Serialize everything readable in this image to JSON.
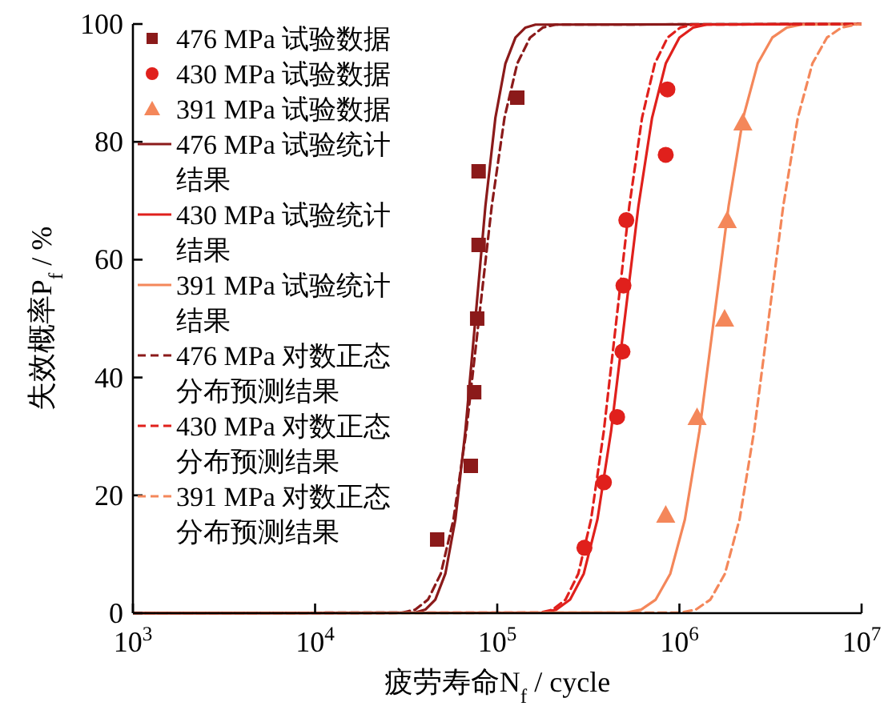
{
  "chart_data": {
    "type": "line",
    "xlabel": "疲劳寿命N$_{f}$ / cycle",
    "ylabel": "失效概率P$_{f}$ / %",
    "log": "x",
    "grid": false,
    "legend": "top left",
    "xlim": [
      1000,
      10000000
    ],
    "ylim": [
      0,
      100
    ],
    "xticks": [
      {
        "value": 1000,
        "label": "10$^{3}$"
      },
      {
        "value": 10000,
        "label": "10$^{4}$"
      },
      {
        "value": 100000,
        "label": "10$^{5}$"
      },
      {
        "value": 1000000,
        "label": "10$^{6}$"
      },
      {
        "value": 10000000,
        "label": "10$^{7}$"
      }
    ],
    "yticks": [
      0,
      20,
      40,
      60,
      80,
      100
    ],
    "series": [
      {
        "name": "476 MPa 试验数据",
        "type": "scatter",
        "marker": "square",
        "color": "#8b1a1a",
        "x": [
          46800,
          71600,
          74700,
          77600,
          79000,
          79000,
          128800
        ],
        "values": [
          12.5,
          25,
          37.5,
          50,
          62.5,
          75,
          87.5
        ]
      },
      {
        "name": "430 MPa 试验数据",
        "type": "scatter",
        "marker": "circle",
        "color": "#e0201c",
        "x": [
          301000,
          385000,
          455000,
          487000,
          493000,
          511000,
          841000,
          859000
        ],
        "values": [
          11.1,
          22.2,
          33.3,
          44.4,
          55.6,
          66.7,
          77.8,
          88.9
        ]
      },
      {
        "name": "391 MPa 试验数据",
        "type": "scatter",
        "marker": "triangle",
        "color": "#f4875a",
        "x": [
          841000,
          1250000,
          1770000,
          1830000,
          2230000
        ],
        "values": [
          16.7,
          33.3,
          50,
          66.7,
          83.3
        ]
      },
      {
        "name": "476 MPa 试验统计结果",
        "line_style": "solid",
        "color": "#8b1a1a",
        "x": [
          1000,
          35500,
          40300,
          45700,
          51900,
          58900,
          66800,
          75900,
          86100,
          97700,
          110900,
          125900,
          142900,
          162200,
          10000000
        ],
        "values": [
          0,
          0.1,
          0.6,
          2.3,
          6.7,
          15.9,
          30.9,
          50,
          69.1,
          84.1,
          93.3,
          97.7,
          99.4,
          99.9,
          100
        ]
      },
      {
        "name": "430 MPa 试验统计结果",
        "line_style": "solid",
        "color": "#e0201c",
        "x": [
          1000,
          177800,
          211300,
          251200,
          298500,
          354800,
          421700,
          501200,
          595700,
          707900,
          841400,
          1000000,
          1188500,
          1412500,
          10000000
        ],
        "values": [
          0,
          0.1,
          0.6,
          2.3,
          6.7,
          15.9,
          30.9,
          50,
          69.1,
          84.1,
          93.3,
          97.7,
          99.4,
          99.9,
          100
        ]
      },
      {
        "name": "391 MPa 试验统计结果",
        "line_style": "solid",
        "color": "#f4875a",
        "x": [
          1000,
          512900,
          616600,
          741300,
          891300,
          1071500,
          1288200,
          1548800,
          1862100,
          2238700,
          2691500,
          3235900,
          3890500,
          4677400,
          10000000
        ],
        "values": [
          0,
          0.1,
          0.6,
          2.3,
          6.7,
          15.9,
          30.9,
          50,
          69.1,
          84.1,
          93.3,
          97.7,
          99.4,
          99.9,
          100
        ]
      },
      {
        "name": "476 MPa 对数正态分布预测结果",
        "line_style": "dashed",
        "color": "#8b1a1a",
        "x": [
          1000,
          30200,
          35500,
          41700,
          49000,
          57500,
          67600,
          79400,
          93300,
          109600,
          128800,
          151400,
          177800,
          208900,
          10000000
        ],
        "values": [
          0,
          0.1,
          0.6,
          2.3,
          6.7,
          15.9,
          30.9,
          50,
          69.1,
          84.1,
          93.3,
          97.7,
          99.4,
          99.9,
          100
        ]
      },
      {
        "name": "430 MPa 对数正态分布预测结果",
        "line_style": "dashed",
        "color": "#e0201c",
        "x": [
          1000,
          171800,
          201800,
          237100,
          278600,
          327300,
          384600,
          451900,
          530900,
          623700,
          732800,
          861000,
          1011600,
          1188500,
          10000000
        ],
        "values": [
          0,
          0.1,
          0.6,
          2.3,
          6.7,
          15.9,
          30.9,
          50,
          69.1,
          84.1,
          93.3,
          97.7,
          99.4,
          99.9,
          100
        ]
      },
      {
        "name": "391 MPa 对数正态分布预测结果",
        "line_style": "dashed",
        "color": "#f4875a",
        "x": [
          1000,
          1023300,
          1230300,
          1479100,
          1778300,
          2138000,
          2570400,
          3090300,
          3715400,
          4466800,
          5370300,
          6456500,
          7762500,
          9332500,
          10000000
        ],
        "values": [
          0,
          0.1,
          0.6,
          2.3,
          6.7,
          15.9,
          30.9,
          50,
          69.1,
          84.1,
          93.3,
          97.7,
          99.4,
          99.9,
          100
        ]
      }
    ]
  }
}
